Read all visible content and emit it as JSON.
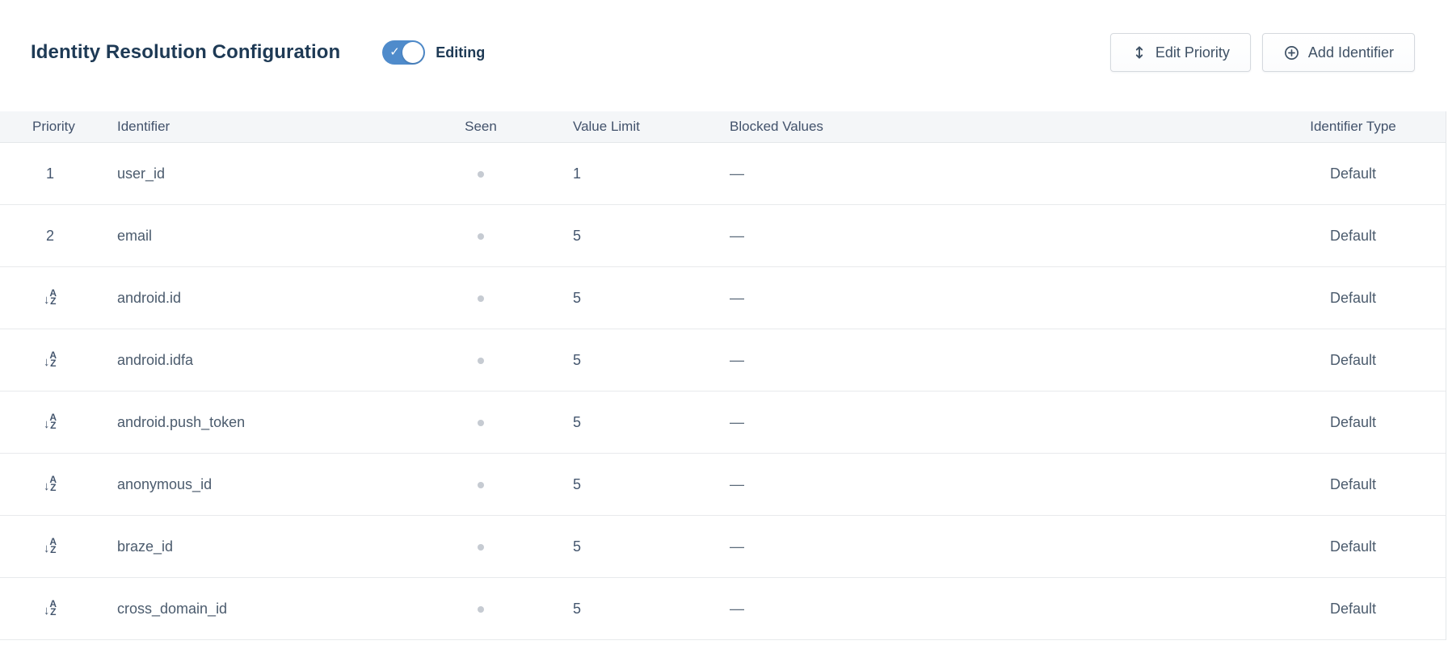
{
  "header": {
    "title": "Identity Resolution Configuration",
    "toggle": {
      "label": "Editing",
      "state": "on",
      "check_glyph": "✓",
      "color": "#4f8bcb"
    },
    "buttons": {
      "edit_priority": {
        "label": "Edit Priority",
        "icon": "up-down-arrow-icon"
      },
      "add_identifier": {
        "label": "Add Identifier",
        "icon": "plus-circle-icon"
      }
    }
  },
  "table": {
    "columns": {
      "priority": "Priority",
      "identifier": "Identifier",
      "seen": "Seen",
      "value_limit": "Value Limit",
      "blocked_values": "Blocked Values",
      "identifier_type": "Identifier Type"
    },
    "rows": [
      {
        "priority": "1",
        "priority_icon": null,
        "identifier": "user_id",
        "seen": true,
        "value_limit": "1",
        "blocked_values": "—",
        "identifier_type": "Default"
      },
      {
        "priority": "2",
        "priority_icon": null,
        "identifier": "email",
        "seen": true,
        "value_limit": "5",
        "blocked_values": "—",
        "identifier_type": "Default"
      },
      {
        "priority": null,
        "priority_icon": "sort-alphabetical-icon",
        "identifier": "android.id",
        "seen": true,
        "value_limit": "5",
        "blocked_values": "—",
        "identifier_type": "Default"
      },
      {
        "priority": null,
        "priority_icon": "sort-alphabetical-icon",
        "identifier": "android.idfa",
        "seen": true,
        "value_limit": "5",
        "blocked_values": "—",
        "identifier_type": "Default"
      },
      {
        "priority": null,
        "priority_icon": "sort-alphabetical-icon",
        "identifier": "android.push_token",
        "seen": true,
        "value_limit": "5",
        "blocked_values": "—",
        "identifier_type": "Default"
      },
      {
        "priority": null,
        "priority_icon": "sort-alphabetical-icon",
        "identifier": "anonymous_id",
        "seen": true,
        "value_limit": "5",
        "blocked_values": "—",
        "identifier_type": "Default"
      },
      {
        "priority": null,
        "priority_icon": "sort-alphabetical-icon",
        "identifier": "braze_id",
        "seen": true,
        "value_limit": "5",
        "blocked_values": "—",
        "identifier_type": "Default"
      },
      {
        "priority": null,
        "priority_icon": "sort-alphabetical-icon",
        "identifier": "cross_domain_id",
        "seen": true,
        "value_limit": "5",
        "blocked_values": "—",
        "identifier_type": "Default"
      }
    ],
    "az_icon": {
      "arrow": "↓",
      "top_letter": "A",
      "bottom_letter": "Z"
    }
  },
  "colors": {
    "title_text": "#1e3a55",
    "toggle_on": "#4f8bcb",
    "header_bg": "#f4f6f8",
    "header_text": "#42526b",
    "cell_text": "#4b5b6d",
    "seen_dot": "#c6cbd2",
    "row_separator": "#e8eaec",
    "button_border": "#d5d9de",
    "button_text": "#3f5165"
  }
}
